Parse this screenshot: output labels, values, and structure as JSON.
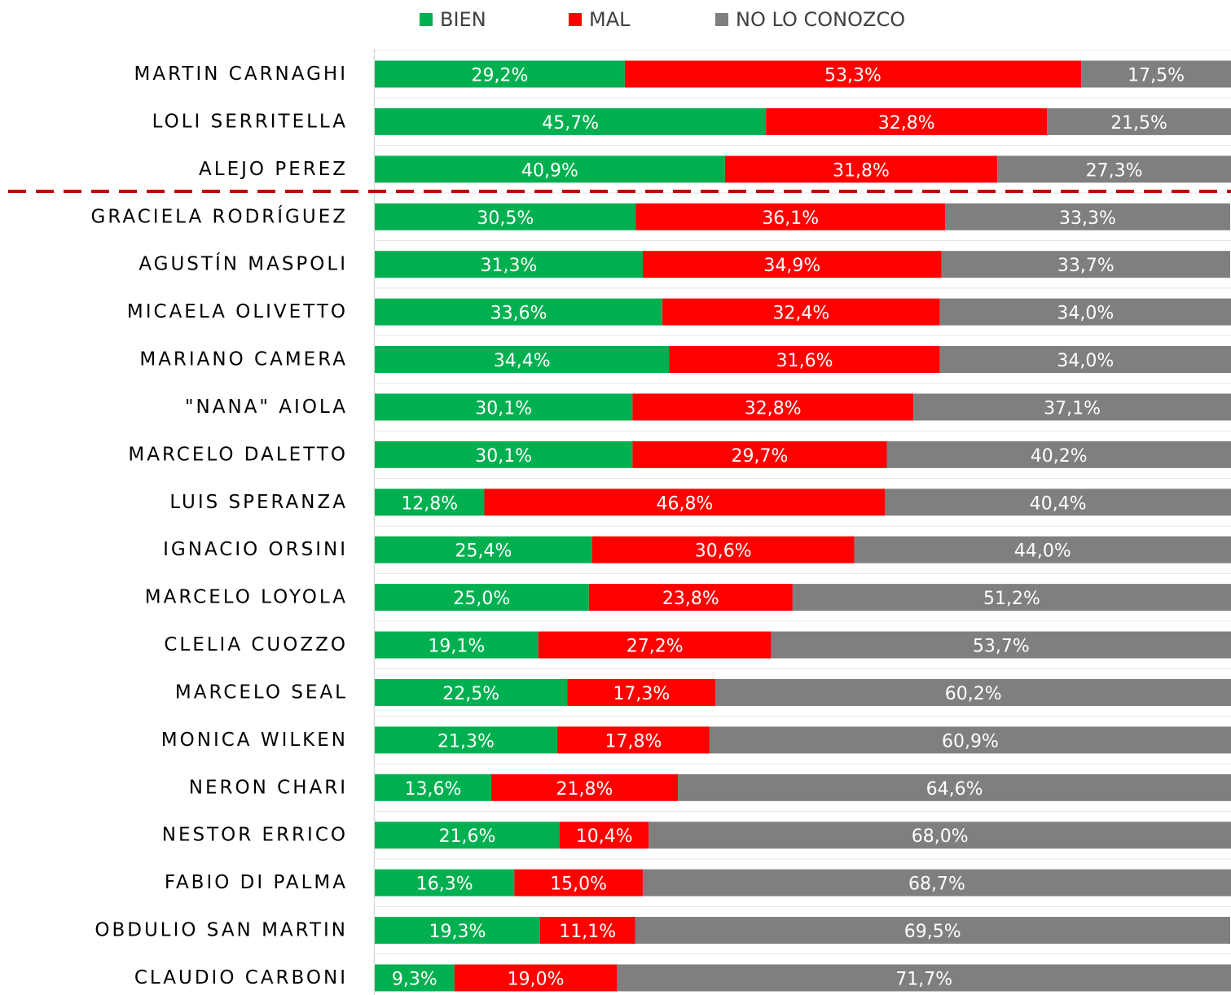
{
  "chart_data": {
    "type": "stacked-bar-horizontal",
    "categories": [
      "MARTIN CARNAGHI",
      "LOLI SERRITELLA",
      "ALEJO PEREZ",
      "GRACIELA RODRÍGUEZ",
      "AGUSTÍN MASPOLI",
      "MICAELA OLIVETTO",
      "MARIANO CAMERA",
      "\"NANA\" AIOLA",
      "MARCELO DALETTO",
      "LUIS SPERANZA",
      "IGNACIO ORSINI",
      "MARCELO LOYOLA",
      "CLELIA CUOZZO",
      "MARCELO SEAL",
      "MONICA WILKEN",
      "NERON CHARI",
      "NESTOR ERRICO",
      "FABIO DI PALMA",
      "OBDULIO SAN MARTIN",
      "CLAUDIO CARBONI"
    ],
    "series": [
      {
        "name": "BIEN",
        "color": "#00b050",
        "values": [
          29.2,
          45.7,
          40.9,
          30.5,
          31.3,
          33.6,
          34.4,
          30.1,
          30.1,
          12.8,
          25.4,
          25.0,
          19.1,
          22.5,
          21.3,
          13.6,
          21.6,
          16.3,
          19.3,
          9.3
        ],
        "value_labels": [
          "29,2%",
          "45,7%",
          "40,9%",
          "30,5%",
          "31,3%",
          "33,6%",
          "34,4%",
          "30,1%",
          "30,1%",
          "12,8%",
          "25,4%",
          "25,0%",
          "19,1%",
          "22,5%",
          "21,3%",
          "13,6%",
          "21,6%",
          "16,3%",
          "19,3%",
          "9,3%"
        ]
      },
      {
        "name": "MAL",
        "color": "#ff0000",
        "values": [
          53.3,
          32.8,
          31.8,
          36.1,
          34.9,
          32.4,
          31.6,
          32.8,
          29.7,
          46.8,
          30.6,
          23.8,
          27.2,
          17.3,
          17.8,
          21.8,
          10.4,
          15.0,
          11.1,
          19.0
        ],
        "value_labels": [
          "53,3%",
          "32,8%",
          "31,8%",
          "36,1%",
          "34,9%",
          "32,4%",
          "31,6%",
          "32,8%",
          "29,7%",
          "46,8%",
          "30,6%",
          "23,8%",
          "27,2%",
          "17,3%",
          "17,8%",
          "21,8%",
          "10,4%",
          "15,0%",
          "11,1%",
          "19,0%"
        ]
      },
      {
        "name": "NO LO CONOZCO",
        "color": "#7f7f7f",
        "values": [
          17.5,
          21.5,
          27.3,
          33.3,
          33.7,
          34.0,
          34.0,
          37.1,
          40.2,
          40.4,
          44.0,
          51.2,
          53.7,
          60.2,
          60.9,
          64.6,
          68.0,
          68.7,
          69.5,
          71.7
        ],
        "value_labels": [
          "17,5%",
          "21,5%",
          "27,3%",
          "33,3%",
          "33,7%",
          "34,0%",
          "34,0%",
          "37,1%",
          "40,2%",
          "40,4%",
          "44,0%",
          "51,2%",
          "53,7%",
          "60,2%",
          "60,9%",
          "64,6%",
          "68,0%",
          "68,7%",
          "69,5%",
          "71,7%"
        ]
      }
    ],
    "xlim": [
      0,
      100
    ],
    "legend": "top"
  }
}
